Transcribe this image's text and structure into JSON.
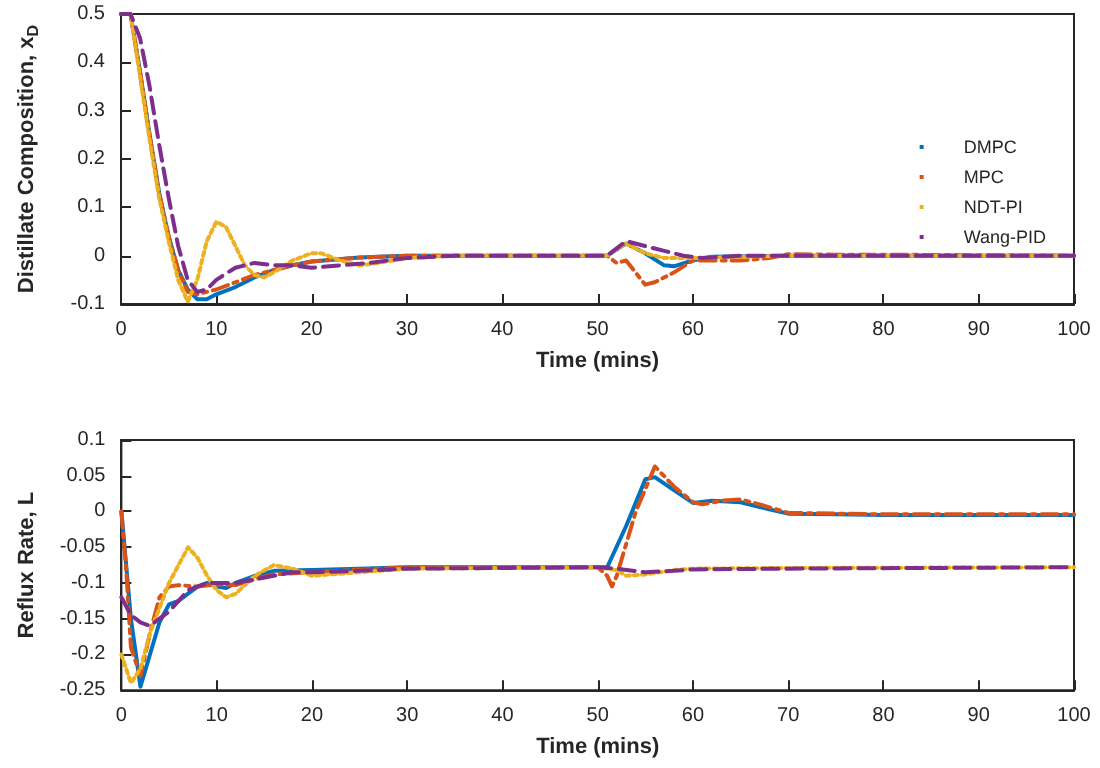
{
  "chart_data": [
    {
      "type": "line",
      "xlabel": "Time (mins)",
      "ylabel": "Distillate Composition, x$_{D}$",
      "xlim": [
        0,
        100
      ],
      "xticks": [
        0,
        10,
        20,
        30,
        40,
        50,
        60,
        70,
        80,
        90,
        100
      ],
      "ylim": [
        -0.1,
        0.5
      ],
      "yticks": [
        -0.1,
        0,
        0.1,
        0.2,
        0.3,
        0.4,
        0.5
      ],
      "grid": false,
      "legend": "right",
      "marker": "none",
      "series": [
        {
          "name": "DMPC",
          "color": "#0072bd",
          "line_style": "solid",
          "x": [
            0,
            1,
            2,
            3,
            4,
            5,
            6,
            7,
            8,
            9,
            10,
            12,
            14,
            16,
            18,
            20,
            25,
            30,
            50,
            51,
            53,
            55,
            57,
            58,
            60,
            62,
            70,
            100
          ],
          "values": [
            0.5,
            0.5,
            0.38,
            0.25,
            0.13,
            0.04,
            -0.03,
            -0.07,
            -0.09,
            -0.09,
            -0.08,
            -0.065,
            -0.045,
            -0.03,
            -0.02,
            -0.012,
            -0.004,
            0,
            0,
            0,
            0.025,
            0.005,
            -0.02,
            -0.022,
            -0.01,
            -0.002,
            0,
            0
          ]
        },
        {
          "name": "MPC",
          "color": "#d95319",
          "line_style": "dashdot",
          "x": [
            0,
            1,
            2,
            3,
            4,
            5,
            6,
            7,
            8,
            10,
            12,
            14,
            16,
            18,
            20,
            25,
            30,
            50,
            51,
            52,
            53,
            55,
            56,
            58,
            60,
            62,
            65,
            68,
            70,
            75,
            80,
            100
          ],
          "values": [
            0.5,
            0.5,
            0.38,
            0.25,
            0.13,
            0.04,
            -0.03,
            -0.075,
            -0.08,
            -0.07,
            -0.055,
            -0.04,
            -0.03,
            -0.02,
            -0.012,
            -0.004,
            0,
            0,
            0,
            -0.015,
            -0.01,
            -0.06,
            -0.055,
            -0.035,
            -0.01,
            -0.01,
            -0.01,
            -0.005,
            0.003,
            0.002,
            0.002,
            0
          ]
        },
        {
          "name": "NDT-PI",
          "color": "#edb120",
          "line_style": "dotted",
          "x": [
            0,
            1,
            2,
            3,
            4,
            5,
            6,
            7,
            8,
            9,
            10,
            11,
            12,
            13,
            14,
            15,
            16,
            18,
            20,
            21,
            23,
            25,
            27,
            30,
            35,
            51,
            53,
            55,
            57,
            60,
            70,
            100
          ],
          "values": [
            0.5,
            0.5,
            0.37,
            0.24,
            0.12,
            0.03,
            -0.05,
            -0.095,
            -0.05,
            0.03,
            0.07,
            0.06,
            0.02,
            -0.02,
            -0.04,
            -0.045,
            -0.035,
            -0.01,
            0.005,
            0.005,
            -0.01,
            -0.02,
            -0.015,
            -0.005,
            0,
            0,
            0.025,
            0.005,
            -0.005,
            -0.005,
            0,
            0
          ]
        },
        {
          "name": "Wang-PID",
          "color": "#7e2f8e",
          "line_style": "dashed",
          "x": [
            0,
            1,
            2,
            3,
            4,
            5,
            6,
            7,
            8,
            9,
            10,
            12,
            14,
            16,
            18,
            20,
            23,
            26,
            30,
            35,
            51,
            53,
            55,
            57,
            59,
            61,
            65,
            100
          ],
          "values": [
            0.5,
            0.5,
            0.45,
            0.35,
            0.23,
            0.12,
            0.02,
            -0.05,
            -0.075,
            -0.07,
            -0.05,
            -0.025,
            -0.015,
            -0.02,
            -0.02,
            -0.025,
            -0.02,
            -0.015,
            -0.005,
            0,
            0,
            0.03,
            0.02,
            0.01,
            0,
            -0.005,
            0,
            0
          ]
        }
      ]
    },
    {
      "type": "line",
      "xlabel": "Time (mins)",
      "ylabel": "Reflux Rate, L",
      "xlim": [
        0,
        100
      ],
      "xticks": [
        0,
        10,
        20,
        30,
        40,
        50,
        60,
        70,
        80,
        90,
        100
      ],
      "ylim": [
        -0.25,
        0.1
      ],
      "yticks": [
        -0.25,
        -0.2,
        -0.15,
        -0.1,
        -0.05,
        0,
        0.05,
        0.1
      ],
      "grid": false,
      "marker": "none",
      "series": [
        {
          "color": "#0072bd",
          "line_style": "solid",
          "x": [
            0,
            1,
            2,
            3,
            4,
            5,
            6,
            7,
            8,
            9,
            10,
            11,
            12,
            14,
            16,
            20,
            25,
            30,
            50,
            51,
            53,
            55,
            56,
            58,
            60,
            62,
            65,
            68,
            70,
            75,
            80,
            100
          ],
          "values": [
            0,
            -0.15,
            -0.245,
            -0.2,
            -0.155,
            -0.13,
            -0.125,
            -0.115,
            -0.105,
            -0.1,
            -0.105,
            -0.107,
            -0.1,
            -0.09,
            -0.083,
            -0.082,
            -0.08,
            -0.078,
            -0.078,
            -0.078,
            -0.02,
            0.045,
            0.048,
            0.03,
            0.012,
            0.015,
            0.013,
            0.003,
            -0.003,
            -0.004,
            -0.005,
            -0.005
          ]
        },
        {
          "color": "#d95319",
          "line_style": "dashdot",
          "x": [
            0,
            0.5,
            1,
            2,
            3,
            4,
            5,
            6,
            8,
            10,
            12,
            14,
            16,
            20,
            30,
            50,
            51,
            51.5,
            52,
            54,
            56,
            58,
            60,
            61,
            63,
            65,
            67,
            70,
            80,
            100
          ],
          "values": [
            0,
            -0.08,
            -0.19,
            -0.23,
            -0.17,
            -0.12,
            -0.105,
            -0.103,
            -0.105,
            -0.102,
            -0.103,
            -0.095,
            -0.088,
            -0.085,
            -0.078,
            -0.078,
            -0.09,
            -0.105,
            -0.09,
            0,
            0.063,
            0.035,
            0.013,
            0.01,
            0.015,
            0.017,
            0.01,
            -0.002,
            -0.004,
            -0.004
          ]
        },
        {
          "color": "#edb120",
          "line_style": "dotted",
          "x": [
            0,
            1,
            2,
            3,
            5,
            7,
            8,
            9,
            10,
            11,
            12,
            14,
            16,
            18,
            20,
            25,
            30,
            50,
            52,
            53,
            55,
            58,
            60,
            70,
            100
          ],
          "values": [
            -0.2,
            -0.24,
            -0.22,
            -0.17,
            -0.1,
            -0.05,
            -0.065,
            -0.09,
            -0.11,
            -0.12,
            -0.115,
            -0.09,
            -0.075,
            -0.08,
            -0.09,
            -0.085,
            -0.08,
            -0.078,
            -0.082,
            -0.09,
            -0.088,
            -0.082,
            -0.08,
            -0.079,
            -0.078
          ]
        },
        {
          "color": "#7e2f8e",
          "line_style": "dashed",
          "x": [
            0,
            1,
            2,
            3,
            4,
            5,
            6,
            7,
            8,
            9,
            10,
            12,
            14,
            16,
            18,
            20,
            25,
            30,
            50,
            52,
            55,
            58,
            60,
            70,
            100
          ],
          "values": [
            -0.12,
            -0.145,
            -0.155,
            -0.16,
            -0.15,
            -0.14,
            -0.125,
            -0.11,
            -0.105,
            -0.1,
            -0.1,
            -0.1,
            -0.095,
            -0.09,
            -0.085,
            -0.085,
            -0.083,
            -0.08,
            -0.078,
            -0.08,
            -0.085,
            -0.083,
            -0.081,
            -0.08,
            -0.078
          ]
        }
      ]
    }
  ]
}
